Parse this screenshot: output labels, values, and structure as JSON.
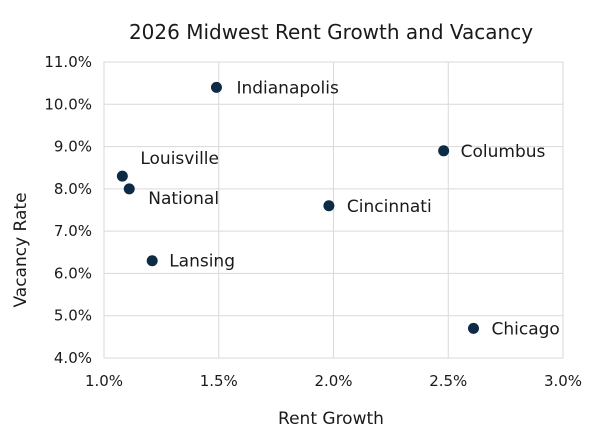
{
  "chart_data": {
    "type": "scatter",
    "title": "2026 Midwest Rent Growth and Vacancy",
    "xlabel": "Rent Growth",
    "ylabel": "Vacancy Rate",
    "xlim": [
      0.01,
      0.03
    ],
    "ylim": [
      0.04,
      0.11
    ],
    "x_ticks": [
      "1.0%",
      "1.5%",
      "2.0%",
      "2.5%",
      "3.0%"
    ],
    "y_ticks": [
      "4.0%",
      "5.0%",
      "6.0%",
      "7.0%",
      "8.0%",
      "9.0%",
      "10.0%",
      "11.0%"
    ],
    "grid": true,
    "marker_color": "#0d2b45",
    "points": [
      {
        "label": "Indianapolis",
        "x": 0.0149,
        "y": 0.104
      },
      {
        "label": "Columbus",
        "x": 0.0248,
        "y": 0.089
      },
      {
        "label": "Louisville",
        "x": 0.0108,
        "y": 0.083
      },
      {
        "label": "National",
        "x": 0.0111,
        "y": 0.08
      },
      {
        "label": "Cincinnati",
        "x": 0.0198,
        "y": 0.076
      },
      {
        "label": "Lansing",
        "x": 0.0121,
        "y": 0.063
      },
      {
        "label": "Chicago",
        "x": 0.0261,
        "y": 0.047
      }
    ]
  }
}
